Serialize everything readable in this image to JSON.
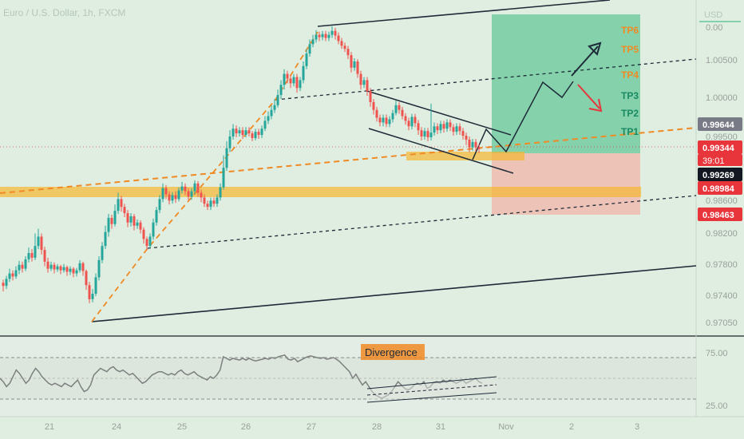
{
  "header": {
    "title": "Euro / U.S. Dollar, 1h, FXCM",
    "currency": "USD"
  },
  "colors": {
    "background": "#dfeee0",
    "bull": "#26a69a",
    "bear": "#ef5350",
    "trendline": "#1e2a38",
    "orange": "#f08a24",
    "zone": "#f5b731",
    "target": "#66c79a",
    "stop": "#f0b4a8"
  },
  "price_axis": {
    "labels": [
      "1.00500",
      "1.00000",
      "0.99500",
      "0.98600",
      "0.98200",
      "0.97800",
      "0.97400",
      "0.97050"
    ]
  },
  "price_badges": [
    {
      "text": "0.99644",
      "color": "#787b86"
    },
    {
      "text": "0.99344",
      "color": "#e8343b"
    },
    {
      "text": "39:01",
      "color": "#e8343b"
    },
    {
      "text": "0.99269",
      "color": "#131722"
    },
    {
      "text": "0.98984",
      "color": "#e8343b"
    },
    {
      "text": "0.98463",
      "color": "#e8343b"
    }
  ],
  "tp_labels": [
    "TP6",
    "TP5",
    "TP4",
    "TP3",
    "TP2",
    "TP1"
  ],
  "indicator": {
    "label": "Divergence",
    "levels": [
      "75.00",
      "25.00"
    ]
  },
  "time_axis": {
    "labels": [
      "21",
      "24",
      "25",
      "26",
      "27",
      "28",
      "31",
      "Nov",
      "2",
      "3"
    ]
  },
  "candles": [
    [
      0.9763,
      0.9759,
      0.9767,
      0.9752
    ],
    [
      0.9759,
      0.9768,
      0.9772,
      0.9755
    ],
    [
      0.9768,
      0.9775,
      0.9781,
      0.9764
    ],
    [
      0.9775,
      0.9771,
      0.9779,
      0.9766
    ],
    [
      0.9771,
      0.9779,
      0.9784,
      0.9768
    ],
    [
      0.9779,
      0.9786,
      0.9791,
      0.9774
    ],
    [
      0.9786,
      0.9781,
      0.979,
      0.9776
    ],
    [
      0.9781,
      0.9793,
      0.9797,
      0.9778
    ],
    [
      0.9793,
      0.9801,
      0.9808,
      0.9789
    ],
    [
      0.9801,
      0.9795,
      0.9806,
      0.979
    ],
    [
      0.9795,
      0.981,
      0.9826,
      0.9792
    ],
    [
      0.981,
      0.9822,
      0.9832,
      0.9806
    ],
    [
      0.9822,
      0.9805,
      0.9826,
      0.9799
    ],
    [
      0.9805,
      0.979,
      0.9809,
      0.9784
    ],
    [
      0.979,
      0.9781,
      0.9795,
      0.9776
    ],
    [
      0.9781,
      0.9786,
      0.979,
      0.9778
    ],
    [
      0.9786,
      0.978,
      0.9789,
      0.9775
    ],
    [
      0.978,
      0.9784,
      0.9787,
      0.9777
    ],
    [
      0.9784,
      0.9779,
      0.9786,
      0.9774
    ],
    [
      0.9779,
      0.9783,
      0.9787,
      0.9776
    ],
    [
      0.9783,
      0.9777,
      0.9785,
      0.9772
    ],
    [
      0.9777,
      0.9781,
      0.9784,
      0.9773
    ],
    [
      0.9781,
      0.9775,
      0.9783,
      0.977
    ],
    [
      0.9775,
      0.9779,
      0.9782,
      0.9771
    ],
    [
      0.9779,
      0.9788,
      0.9792,
      0.9776
    ],
    [
      0.9788,
      0.9778,
      0.979,
      0.9772
    ],
    [
      0.9778,
      0.976,
      0.978,
      0.9754
    ],
    [
      0.976,
      0.9742,
      0.9764,
      0.9737
    ],
    [
      0.9742,
      0.9749,
      0.9755,
      0.9738
    ],
    [
      0.9749,
      0.977,
      0.9775,
      0.9746
    ],
    [
      0.977,
      0.9792,
      0.9797,
      0.9766
    ],
    [
      0.9792,
      0.981,
      0.9815,
      0.9788
    ],
    [
      0.981,
      0.9828,
      0.9836,
      0.9806
    ],
    [
      0.9828,
      0.9846,
      0.9851,
      0.9822
    ],
    [
      0.9846,
      0.9838,
      0.985,
      0.9832
    ],
    [
      0.9838,
      0.9855,
      0.9863,
      0.9835
    ],
    [
      0.9855,
      0.987,
      0.9878,
      0.9851
    ],
    [
      0.987,
      0.986,
      0.9874,
      0.9854
    ],
    [
      0.986,
      0.9852,
      0.9864,
      0.9847
    ],
    [
      0.9852,
      0.984,
      0.9856,
      0.9834
    ],
    [
      0.984,
      0.9848,
      0.9852,
      0.9835
    ],
    [
      0.9848,
      0.9836,
      0.9851,
      0.983
    ],
    [
      0.9836,
      0.984,
      0.9844,
      0.9832
    ],
    [
      0.984,
      0.9831,
      0.9843,
      0.9826
    ],
    [
      0.9831,
      0.9819,
      0.9834,
      0.9813
    ],
    [
      0.9819,
      0.981,
      0.9822,
      0.9805
    ],
    [
      0.981,
      0.9822,
      0.9826,
      0.9807
    ],
    [
      0.9822,
      0.984,
      0.9845,
      0.9818
    ],
    [
      0.984,
      0.9856,
      0.986,
      0.9836
    ],
    [
      0.9856,
      0.987,
      0.9875,
      0.9852
    ],
    [
      0.987,
      0.9884,
      0.989,
      0.9866
    ],
    [
      0.9884,
      0.9876,
      0.9888,
      0.987
    ],
    [
      0.9876,
      0.9868,
      0.988,
      0.9863
    ],
    [
      0.9868,
      0.9875,
      0.9879,
      0.9864
    ],
    [
      0.9875,
      0.987,
      0.988,
      0.9865
    ],
    [
      0.987,
      0.9881,
      0.9885,
      0.9867
    ],
    [
      0.9881,
      0.9886,
      0.9892,
      0.9877
    ],
    [
      0.9886,
      0.988,
      0.989,
      0.9875
    ],
    [
      0.988,
      0.9873,
      0.9884,
      0.9869
    ],
    [
      0.9873,
      0.988,
      0.9884,
      0.9869
    ],
    [
      0.988,
      0.989,
      0.9894,
      0.9876
    ],
    [
      0.989,
      0.9878,
      0.9893,
      0.9873
    ],
    [
      0.9878,
      0.9872,
      0.9882,
      0.9866
    ],
    [
      0.9872,
      0.9864,
      0.9876,
      0.986
    ],
    [
      0.9864,
      0.986,
      0.9868,
      0.9856
    ],
    [
      0.986,
      0.9868,
      0.9872,
      0.9856
    ],
    [
      0.9868,
      0.9864,
      0.9872,
      0.986
    ],
    [
      0.9864,
      0.9872,
      0.9876,
      0.986
    ],
    [
      0.9872,
      0.9885,
      0.989,
      0.9868
    ],
    [
      0.9885,
      0.991,
      0.9926,
      0.9882
    ],
    [
      0.991,
      0.9935,
      0.9944,
      0.9906
    ],
    [
      0.9935,
      0.995,
      0.9958,
      0.993
    ],
    [
      0.995,
      0.996,
      0.9966,
      0.9946
    ],
    [
      0.996,
      0.9954,
      0.9964,
      0.9949
    ],
    [
      0.9954,
      0.9958,
      0.9962,
      0.995
    ],
    [
      0.9958,
      0.9952,
      0.9962,
      0.9947
    ],
    [
      0.9952,
      0.9958,
      0.9962,
      0.9949
    ],
    [
      0.9958,
      0.9954,
      0.9962,
      0.995
    ],
    [
      0.9954,
      0.9948,
      0.9957,
      0.9944
    ],
    [
      0.9948,
      0.9956,
      0.996,
      0.9945
    ],
    [
      0.9956,
      0.9952,
      0.996,
      0.9947
    ],
    [
      0.9952,
      0.996,
      0.9964,
      0.9948
    ],
    [
      0.996,
      0.997,
      0.9976,
      0.9957
    ],
    [
      0.997,
      0.9976,
      0.9982,
      0.9966
    ],
    [
      0.9976,
      0.9984,
      0.999,
      0.9972
    ],
    [
      0.9984,
      0.999,
      0.9998,
      0.998
    ],
    [
      0.999,
      1.0003,
      1.001,
      0.9987
    ],
    [
      1.0003,
      1.0016,
      1.0022,
      0.9998
    ],
    [
      1.0016,
      1.003,
      1.0036,
      1.001
    ],
    [
      1.003,
      1.0024,
      1.0034,
      1.0018
    ],
    [
      1.0024,
      1.0018,
      1.0028,
      1.0012
    ],
    [
      1.0018,
      1.0026,
      1.003,
      1.0014
    ],
    [
      1.0026,
      1.0012,
      1.003,
      1.0006
    ],
    [
      1.0012,
      1.0022,
      1.0026,
      1.0008
    ],
    [
      1.0022,
      1.004,
      1.0046,
      1.0018
    ],
    [
      1.004,
      1.0056,
      1.0062,
      1.0036
    ],
    [
      1.0056,
      1.0068,
      1.0074,
      1.0052
    ],
    [
      1.0068,
      1.0074,
      1.008,
      1.0064
    ],
    [
      1.0074,
      1.008,
      1.0086,
      1.007
    ],
    [
      1.008,
      1.0077,
      1.0084,
      1.0072
    ],
    [
      1.0077,
      1.0081,
      1.0085,
      1.0073
    ],
    [
      1.0081,
      1.0076,
      1.0085,
      1.0072
    ],
    [
      1.0076,
      1.008,
      1.0084,
      1.0072
    ],
    [
      1.008,
      1.0085,
      1.0091,
      1.0076
    ],
    [
      1.0085,
      1.0079,
      1.0089,
      1.0074
    ],
    [
      1.0079,
      1.0072,
      1.0083,
      1.0068
    ],
    [
      1.0072,
      1.0066,
      1.0076,
      1.0062
    ],
    [
      1.0066,
      1.0062,
      1.007,
      1.0058
    ],
    [
      1.0062,
      1.0054,
      1.0066,
      1.0049
    ],
    [
      1.0054,
      1.0038,
      1.0058,
      1.0032
    ],
    [
      1.0038,
      1.0046,
      1.005,
      1.0034
    ],
    [
      1.0046,
      1.003,
      1.0049,
      1.0025
    ],
    [
      1.003,
      1.0016,
      1.0034,
      1.001
    ],
    [
      1.0016,
      1.0022,
      1.0026,
      1.0012
    ],
    [
      1.0022,
      1.0008,
      1.0026,
      1.0002
    ],
    [
      1.0008,
      0.9994,
      1.0012,
      0.9988
    ],
    [
      0.9994,
      0.9984,
      0.9998,
      0.9978
    ],
    [
      0.9984,
      0.9974,
      0.9988,
      0.9969
    ],
    [
      0.9974,
      0.9968,
      0.9978,
      0.9963
    ],
    [
      0.9968,
      0.9974,
      0.9978,
      0.9963
    ],
    [
      0.9974,
      0.9966,
      0.9978,
      0.9962
    ],
    [
      0.9966,
      0.9972,
      0.9976,
      0.9962
    ],
    [
      0.9972,
      0.998,
      0.9984,
      0.9968
    ],
    [
      0.998,
      0.999,
      0.9996,
      0.9977
    ],
    [
      0.999,
      0.9984,
      0.9994,
      0.9979
    ],
    [
      0.9984,
      0.9976,
      0.9988,
      0.9972
    ],
    [
      0.9976,
      0.997,
      0.998,
      0.9965
    ],
    [
      0.997,
      0.9963,
      0.9974,
      0.9958
    ],
    [
      0.9963,
      0.9975,
      0.9979,
      0.9959
    ],
    [
      0.9975,
      0.9967,
      0.9979,
      0.9962
    ],
    [
      0.9967,
      0.9958,
      0.9971,
      0.9952
    ],
    [
      0.9958,
      0.995,
      0.9962,
      0.9945
    ],
    [
      0.995,
      0.9957,
      0.9961,
      0.9946
    ],
    [
      0.9957,
      0.9949,
      0.9961,
      0.9944
    ],
    [
      0.9949,
      0.9955,
      0.9992,
      0.9945
    ],
    [
      0.9955,
      0.9963,
      0.9968,
      0.9951
    ],
    [
      0.9963,
      0.9958,
      0.9967,
      0.9953
    ],
    [
      0.9958,
      0.9966,
      0.997,
      0.9954
    ],
    [
      0.9966,
      0.996,
      0.997,
      0.9955
    ],
    [
      0.996,
      0.9968,
      0.9972,
      0.9956
    ],
    [
      0.9968,
      0.9962,
      0.9972,
      0.9957
    ],
    [
      0.9962,
      0.9956,
      0.9966,
      0.9951
    ],
    [
      0.9956,
      0.9963,
      0.9967,
      0.9952
    ],
    [
      0.9963,
      0.9957,
      0.9967,
      0.9952
    ],
    [
      0.9957,
      0.9951,
      0.9961,
      0.9946
    ],
    [
      0.9951,
      0.9946,
      0.9955,
      0.9939
    ],
    [
      0.9946,
      0.9936,
      0.995,
      0.993
    ],
    [
      0.9936,
      0.9943,
      0.9947,
      0.9932
    ],
    [
      0.9943,
      0.9936,
      0.9947,
      0.9931
    ],
    [
      0.9936,
      0.9934,
      0.994,
      0.9929
    ]
  ],
  "rsi": [
    50,
    46,
    40,
    44,
    52,
    60,
    56,
    50,
    44,
    48,
    56,
    62,
    58,
    52,
    48,
    44,
    42,
    44,
    42,
    40,
    44,
    42,
    40,
    44,
    48,
    40,
    34,
    36,
    42,
    54,
    58,
    62,
    60,
    58,
    62,
    64,
    60,
    58,
    60,
    57,
    54,
    56,
    52,
    48,
    44,
    46,
    50,
    54,
    56,
    58,
    58,
    56,
    54,
    56,
    54,
    58,
    60,
    56,
    54,
    56,
    58,
    54,
    52,
    50,
    48,
    52,
    50,
    54,
    60,
    76,
    74,
    72,
    74,
    73,
    72,
    74,
    72,
    74,
    72,
    71,
    72,
    73,
    74,
    73,
    75,
    74,
    76,
    77,
    78,
    73,
    72,
    74,
    70,
    72,
    74,
    76,
    77,
    76,
    75,
    74,
    75,
    73,
    74,
    75,
    73,
    70,
    66,
    62,
    58,
    50,
    55,
    48,
    42,
    46,
    40,
    34,
    30,
    28,
    26,
    28,
    30,
    34,
    40,
    46,
    42,
    38,
    36,
    38,
    42,
    44,
    42,
    46,
    38,
    40,
    45,
    46,
    44,
    48,
    45,
    48,
    46,
    44,
    46,
    48,
    44,
    46,
    48,
    50,
    46,
    44
  ],
  "chart_data": {
    "type": "candlestick",
    "title": "Euro / U.S. Dollar, 1h, FXCM",
    "ylim": [
      0.9696,
      1.0105
    ],
    "x_tick_labels": [
      "21",
      "24",
      "25",
      "26",
      "27",
      "28",
      "31",
      "Nov",
      "2",
      "3"
    ],
    "y_tick_labels": [
      "1.00500",
      "1.00000",
      "0.99500",
      "0.98600",
      "0.98200",
      "0.97800",
      "0.97400",
      "0.97050"
    ],
    "annotated_levels": [
      0.99644,
      0.99344,
      0.99269,
      0.98984,
      0.98463
    ],
    "targets": [
      "TP1",
      "TP2",
      "TP3",
      "TP4",
      "TP5",
      "TP6"
    ],
    "indicator": {
      "name": "Divergence",
      "levels": [
        75.0,
        25.0
      ]
    }
  }
}
